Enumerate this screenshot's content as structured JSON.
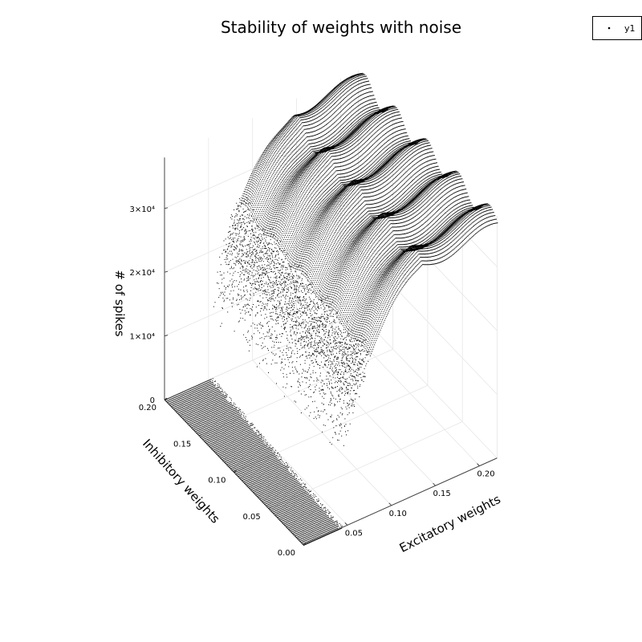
{
  "chart_data": {
    "type": "scatter",
    "title": "Stability of weights with noise",
    "xlabel": "Excitatory weights",
    "ylabel": "Inhibitory weights",
    "zlabel": "# of spikes",
    "xlim": [
      0.0,
      0.22
    ],
    "ylim": [
      0.0,
      0.2
    ],
    "zlim": [
      0,
      38000
    ],
    "x_ticks": [
      "0.05",
      "0.10",
      "0.15",
      "0.20"
    ],
    "y_ticks": [
      "0.00",
      "0.05",
      "0.10",
      "0.15",
      "0.20"
    ],
    "z_ticks": [
      "0",
      "1×10⁴",
      "2×10⁴",
      "3×10⁴"
    ],
    "x_tick_values": [
      0.05,
      0.1,
      0.15,
      0.2
    ],
    "y_tick_values": [
      0.0,
      0.05,
      0.1,
      0.15,
      0.2
    ],
    "z_tick_values": [
      0,
      10000,
      20000,
      30000
    ],
    "grid": true,
    "legend": {
      "position": "top-right",
      "entries": [
        "y1"
      ]
    },
    "series": [
      {
        "name": "y1",
        "marker": "point",
        "color": "#000000",
        "surface": {
          "description": "dense sampled point cloud over the weight grid",
          "x_range": [
            0.0,
            0.22
          ],
          "y_range": [
            0.0,
            0.2
          ],
          "low_region_z": 0,
          "low_region_boundary": "excitatory weight below ~0.045 + 0.05·inhibitory weight",
          "ramp_z_at_boundary": 12000,
          "max_z": 36000
        }
      }
    ]
  }
}
